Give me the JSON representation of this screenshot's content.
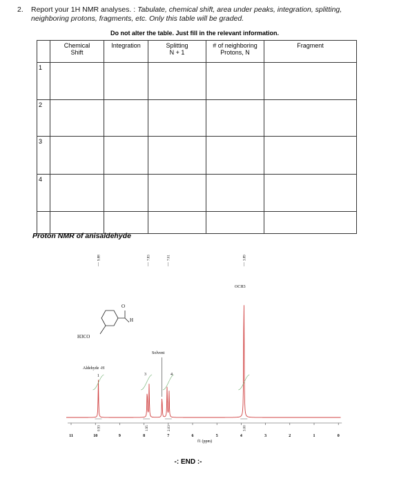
{
  "question": {
    "number": "2.",
    "lead": "Report your 1H NMR analyses. : ",
    "instruction": "Tabulate, chemical shift, area under peaks, integration, splitting, neighboring protons, fragments, etc. Only this table will be graded."
  },
  "table": {
    "note": "Do not alter the table.  Just fill in the relevant information.",
    "headers": [
      "Chemical\nShift",
      "Integration",
      "Splitting\nN + 1",
      "# of neighboring\nProtons, N",
      "Fragment"
    ],
    "row_labels": [
      "1",
      "2",
      "3",
      "4"
    ]
  },
  "spectrum": {
    "title": "Proton NMR of anisaldehyde",
    "peak_labels": [
      "9.88",
      "7.83",
      "7.01",
      "3.89"
    ],
    "integrals": [
      "0.93",
      "1.95",
      "2.03",
      "3.00"
    ],
    "axis_ticks": [
      11,
      10,
      9,
      8,
      7,
      6,
      5,
      4,
      3,
      2,
      1,
      0
    ],
    "axis_label": "f1 (ppm)",
    "annotations": {
      "aldehyde": "Aldehyde -H",
      "aldehyde_number": "1",
      "h3": "3",
      "h4": "4",
      "solvent": "Solvent",
      "och3": "OCH3",
      "h3co": "H3CO",
      "h": "H",
      "o": "O"
    }
  },
  "footer": "-: END :-"
}
